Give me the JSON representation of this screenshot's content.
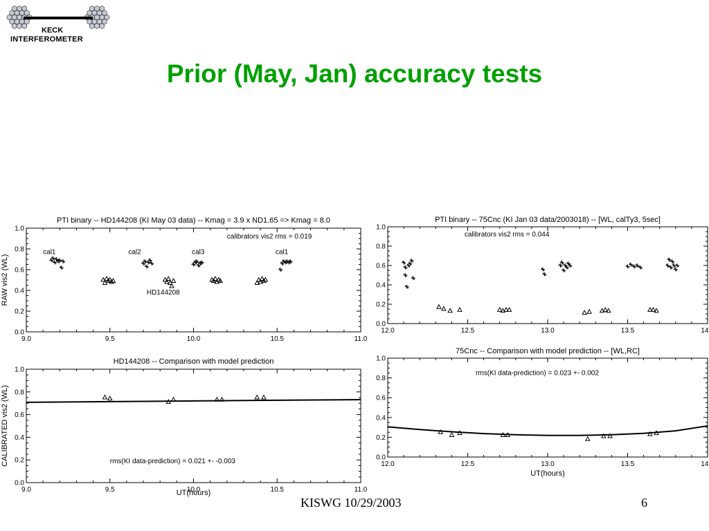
{
  "logo": {
    "line1": "KECK",
    "line2": "INTERFEROMETER"
  },
  "slide": {
    "title": "Prior (May, Jan) accuracy tests"
  },
  "footer": {
    "text": "KISWG 10/29/2003",
    "page": "6"
  },
  "colors": {
    "title": "#00a000",
    "data": "#000000"
  },
  "chart_data": [
    {
      "id": "c1",
      "type": "scatter",
      "title": "PTI binary -- HD144208 (KI May 03 data) -- Kmag = 3.9 x ND1.65 => Kmag = 8.0",
      "xlabel": "",
      "ylabel": "RAW vis2 (WL)",
      "xlim": [
        9.0,
        11.0
      ],
      "ylim": [
        0.0,
        1.0
      ],
      "xticks": [
        "9.0",
        "9.5",
        "10.0",
        "10.5",
        "11.0"
      ],
      "yticks": [
        "0.0",
        "0.2",
        "0.4",
        "0.6",
        "0.8",
        "1.0"
      ],
      "annotations": [
        {
          "text": "calibrators vis2 rms =  0.019",
          "x": 10.2,
          "y": 0.9
        },
        {
          "text": "cal1",
          "x": 9.1,
          "y": 0.75
        },
        {
          "text": "cal2",
          "x": 9.61,
          "y": 0.75
        },
        {
          "text": "cal3",
          "x": 9.99,
          "y": 0.75
        },
        {
          "text": "cal1",
          "x": 10.49,
          "y": 0.75
        },
        {
          "text": "HD144208",
          "x": 9.72,
          "y": 0.36
        }
      ],
      "series": [
        {
          "symbol": "plus",
          "points": [
            [
              9.15,
              0.69
            ],
            [
              9.16,
              0.71
            ],
            [
              9.17,
              0.67
            ],
            [
              9.18,
              0.7
            ],
            [
              9.19,
              0.68
            ],
            [
              9.2,
              0.69
            ],
            [
              9.21,
              0.62
            ],
            [
              9.22,
              0.68
            ],
            [
              9.7,
              0.66
            ],
            [
              9.71,
              0.68
            ],
            [
              9.72,
              0.63
            ],
            [
              9.73,
              0.67
            ],
            [
              9.74,
              0.69
            ],
            [
              9.75,
              0.66
            ],
            [
              10.0,
              0.65
            ],
            [
              10.01,
              0.67
            ],
            [
              10.02,
              0.68
            ],
            [
              10.03,
              0.64
            ],
            [
              10.04,
              0.66
            ],
            [
              10.05,
              0.67
            ],
            [
              10.52,
              0.6
            ],
            [
              10.53,
              0.66
            ],
            [
              10.54,
              0.68
            ],
            [
              10.55,
              0.67
            ],
            [
              10.56,
              0.68
            ],
            [
              10.57,
              0.67
            ],
            [
              10.58,
              0.68
            ]
          ]
        },
        {
          "symbol": "triangle",
          "points": [
            [
              9.46,
              0.5
            ],
            [
              9.47,
              0.47
            ],
            [
              9.48,
              0.51
            ],
            [
              9.49,
              0.49
            ],
            [
              9.5,
              0.5
            ],
            [
              9.51,
              0.48
            ],
            [
              9.52,
              0.49
            ],
            [
              9.83,
              0.5
            ],
            [
              9.84,
              0.48
            ],
            [
              9.85,
              0.51
            ],
            [
              9.86,
              0.47
            ],
            [
              9.87,
              0.44
            ],
            [
              9.88,
              0.49
            ],
            [
              10.11,
              0.5
            ],
            [
              10.12,
              0.49
            ],
            [
              10.13,
              0.51
            ],
            [
              10.14,
              0.48
            ],
            [
              10.15,
              0.5
            ],
            [
              10.16,
              0.49
            ],
            [
              10.38,
              0.47
            ],
            [
              10.39,
              0.5
            ],
            [
              10.4,
              0.48
            ],
            [
              10.41,
              0.51
            ],
            [
              10.42,
              0.49
            ],
            [
              10.43,
              0.5
            ]
          ]
        }
      ]
    },
    {
      "id": "c2",
      "type": "scatter",
      "title": "HD144208 -- Comparison with model prediction",
      "xlabel": "UT(hours)",
      "ylabel": "CALIBRATED vis2 (WL)",
      "xlim": [
        9.0,
        11.0
      ],
      "ylim": [
        0.0,
        1.0
      ],
      "xticks": [
        "9.0",
        "9.5",
        "10.0",
        "10.5",
        "11.0"
      ],
      "yticks": [
        "0.0",
        "0.2",
        "0.4",
        "0.6",
        "0.8",
        "1.0"
      ],
      "annotations": [
        {
          "text": "rms(KI data-prediction) =  0.021 +- -0.003",
          "x": 9.5,
          "y": 0.17
        }
      ],
      "line": [
        [
          9.0,
          0.708
        ],
        [
          9.5,
          0.714
        ],
        [
          10.0,
          0.72
        ],
        [
          10.5,
          0.726
        ],
        [
          11.0,
          0.732
        ]
      ],
      "series": [
        {
          "symbol": "triangle",
          "points": [
            [
              9.47,
              0.75
            ],
            [
              9.5,
              0.74
            ],
            [
              9.85,
              0.71
            ],
            [
              9.88,
              0.73
            ],
            [
              10.14,
              0.73
            ],
            [
              10.17,
              0.73
            ],
            [
              10.38,
              0.75
            ],
            [
              10.42,
              0.75
            ]
          ]
        }
      ]
    },
    {
      "id": "c3",
      "type": "scatter",
      "title": "PTI binary -- 75Cnc (KI Jan 03 data/2003018) -- [WL, calTy3, 5sec]",
      "xlabel": "",
      "ylabel": "",
      "xlim": [
        12.0,
        14.0
      ],
      "ylim": [
        0.0,
        1.0
      ],
      "xticks": [
        "12.0",
        "12.5",
        "13.0",
        "13.5",
        "14.0"
      ],
      "yticks": [
        "0.0",
        "0.2",
        "0.4",
        "0.6",
        "0.8",
        "1.0"
      ],
      "annotations": [
        {
          "text": "calibrators vis2 rms =  0.044",
          "x": 12.48,
          "y": 0.9
        }
      ],
      "series": [
        {
          "symbol": "plus",
          "points": [
            [
              12.1,
              0.63
            ],
            [
              12.11,
              0.58
            ],
            [
              12.11,
              0.5
            ],
            [
              12.12,
              0.38
            ],
            [
              12.13,
              0.6
            ],
            [
              12.14,
              0.62
            ],
            [
              12.15,
              0.65
            ],
            [
              12.16,
              0.47
            ],
            [
              12.97,
              0.56
            ],
            [
              12.98,
              0.51
            ],
            [
              13.08,
              0.6
            ],
            [
              13.09,
              0.63
            ],
            [
              13.1,
              0.55
            ],
            [
              13.11,
              0.6
            ],
            [
              13.12,
              0.58
            ],
            [
              13.13,
              0.62
            ],
            [
              13.14,
              0.6
            ],
            [
              13.5,
              0.59
            ],
            [
              13.52,
              0.61
            ],
            [
              13.54,
              0.59
            ],
            [
              13.56,
              0.6
            ],
            [
              13.58,
              0.58
            ],
            [
              13.75,
              0.6
            ],
            [
              13.76,
              0.66
            ],
            [
              13.77,
              0.58
            ],
            [
              13.78,
              0.64
            ],
            [
              13.79,
              0.6
            ],
            [
              13.8,
              0.56
            ],
            [
              13.81,
              0.6
            ]
          ]
        },
        {
          "symbol": "triangle",
          "points": [
            [
              12.32,
              0.17
            ],
            [
              12.35,
              0.15
            ],
            [
              12.39,
              0.13
            ],
            [
              12.45,
              0.14
            ],
            [
              12.7,
              0.14
            ],
            [
              12.72,
              0.13
            ],
            [
              12.74,
              0.14
            ],
            [
              12.76,
              0.14
            ],
            [
              13.23,
              0.11
            ],
            [
              13.26,
              0.12
            ],
            [
              13.34,
              0.13
            ],
            [
              13.36,
              0.14
            ],
            [
              13.38,
              0.13
            ],
            [
              13.64,
              0.14
            ],
            [
              13.66,
              0.14
            ],
            [
              13.68,
              0.13
            ]
          ]
        }
      ]
    },
    {
      "id": "c4",
      "type": "scatter",
      "title": "75Cnc -- Comparison with model prediction -- [WL,RC]",
      "xlabel": "UT(hours)",
      "ylabel": "",
      "xlim": [
        12.0,
        14.0
      ],
      "ylim": [
        0.0,
        1.0
      ],
      "xticks": [
        "12.0",
        "12.5",
        "13.0",
        "13.5",
        "14.0"
      ],
      "yticks": [
        "0.0",
        "0.2",
        "0.4",
        "0.6",
        "0.8",
        "1.0"
      ],
      "annotations": [
        {
          "text": "rms(KI data-prediction) =  0.023 +-  0.002",
          "x": 12.55,
          "y": 0.83
        }
      ],
      "line": [
        [
          12.0,
          0.305
        ],
        [
          12.2,
          0.278
        ],
        [
          12.4,
          0.255
        ],
        [
          12.6,
          0.237
        ],
        [
          12.8,
          0.225
        ],
        [
          13.0,
          0.218
        ],
        [
          13.2,
          0.218
        ],
        [
          13.4,
          0.225
        ],
        [
          13.6,
          0.24
        ],
        [
          13.8,
          0.265
        ],
        [
          14.0,
          0.315
        ]
      ],
      "series": [
        {
          "symbol": "triangle",
          "points": [
            [
              12.33,
              0.25
            ],
            [
              12.4,
              0.22
            ],
            [
              12.45,
              0.24
            ],
            [
              12.72,
              0.22
            ],
            [
              12.75,
              0.22
            ],
            [
              13.25,
              0.18
            ],
            [
              13.35,
              0.21
            ],
            [
              13.39,
              0.21
            ],
            [
              13.64,
              0.23
            ],
            [
              13.68,
              0.24
            ]
          ]
        }
      ]
    }
  ]
}
